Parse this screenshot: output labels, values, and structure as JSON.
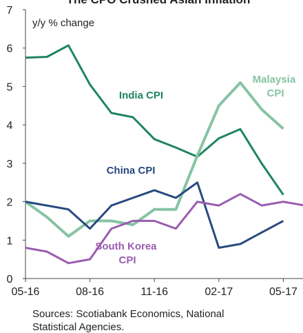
{
  "chart_data": {
    "type": "line",
    "title": "The CPO Crushed Asian Inflation",
    "ylabel": "y/y % change",
    "source": [
      "Sources: Scotiabank Economics, National",
      "Statistical Agencies."
    ],
    "categories": [
      "05-16",
      null,
      null,
      "08-16",
      null,
      null,
      "11-16",
      null,
      null,
      "02-17",
      null,
      null,
      "05-17",
      null
    ],
    "ylim": [
      0,
      7
    ],
    "yticks": [
      0,
      1,
      2,
      3,
      4,
      5,
      6,
      7
    ],
    "grid": false,
    "series": [
      {
        "name": "India CPI",
        "color": "#1e8461",
        "values": [
          5.75,
          5.77,
          6.07,
          5.05,
          4.31,
          4.2,
          3.63,
          3.41,
          3.17,
          3.65,
          3.89,
          2.99,
          2.18,
          null
        ]
      },
      {
        "name": "Malaysia CPI",
        "color": "#86c3a4",
        "values": [
          2.0,
          1.6,
          1.1,
          1.5,
          1.5,
          1.4,
          1.8,
          1.8,
          3.2,
          4.5,
          5.1,
          4.4,
          3.9,
          null
        ]
      },
      {
        "name": "China CPI",
        "color": "#27497e",
        "values": [
          2.0,
          1.9,
          1.8,
          1.3,
          1.9,
          2.1,
          2.3,
          2.1,
          2.5,
          0.8,
          0.9,
          1.2,
          1.5,
          null
        ]
      },
      {
        "name": "South Korea CPI",
        "color": "#9a5cb0",
        "values": [
          0.8,
          0.7,
          0.4,
          0.5,
          1.3,
          1.5,
          1.5,
          1.3,
          2.0,
          1.9,
          2.2,
          1.9,
          2.0,
          1.9
        ]
      }
    ]
  }
}
